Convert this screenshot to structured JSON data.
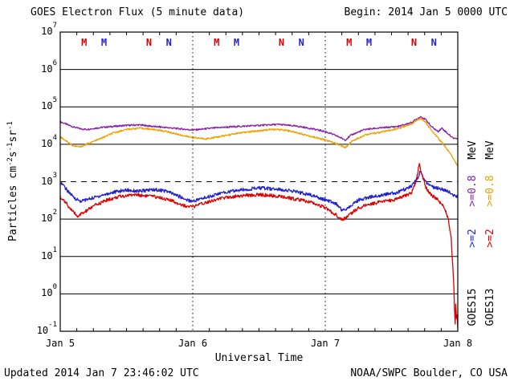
{
  "header": {
    "title": "GOES Electron Flux (5 minute data)",
    "begin": "Begin: 2014 Jan 5 0000 UTC"
  },
  "footer": {
    "updated": "Updated 2014 Jan 7 23:46:02 UTC",
    "credit": "NOAA/SWPC Boulder, CO USA"
  },
  "chart_data": {
    "type": "line",
    "title": "GOES Electron Flux (5 minute data)",
    "xlabel": "Universal Time",
    "ylabel": "Particles cm-2 s-1 sr-1",
    "ylabel_parts": [
      {
        "text": "Particles cm"
      },
      {
        "sup": "-2"
      },
      {
        "text": "s"
      },
      {
        "sup": "-1"
      },
      {
        "text": "sr"
      },
      {
        "sup": "-1"
      }
    ],
    "x_range_days": [
      0,
      3
    ],
    "x_ticks": [
      {
        "t": 0,
        "label": "Jan 5"
      },
      {
        "t": 1,
        "label": "Jan 6"
      },
      {
        "t": 2,
        "label": "Jan 7"
      },
      {
        "t": 3,
        "label": "Jan 8"
      }
    ],
    "y_log_range": [
      -1,
      7
    ],
    "y_tick_exponents": [
      7,
      6,
      5,
      4,
      3,
      2,
      1,
      0,
      -1
    ],
    "grid": "horizontal-solid-per-decade",
    "threshold_line": {
      "value": 1000,
      "style": "dashed"
    },
    "day_gridlines_t": [
      1,
      2
    ],
    "legend_position": "right-rotated",
    "sat_markers": [
      {
        "t": 0.18,
        "label": "M",
        "color": "#dd0000"
      },
      {
        "t": 0.33,
        "label": "M",
        "color": "#2222cc"
      },
      {
        "t": 0.67,
        "label": "N",
        "color": "#dd0000"
      },
      {
        "t": 0.82,
        "label": "N",
        "color": "#2222cc"
      },
      {
        "t": 1.18,
        "label": "M",
        "color": "#dd0000"
      },
      {
        "t": 1.33,
        "label": "M",
        "color": "#2222cc"
      },
      {
        "t": 1.67,
        "label": "N",
        "color": "#dd0000"
      },
      {
        "t": 1.82,
        "label": "N",
        "color": "#2222cc"
      },
      {
        "t": 2.18,
        "label": "M",
        "color": "#dd0000"
      },
      {
        "t": 2.33,
        "label": "M",
        "color": "#2222cc"
      },
      {
        "t": 2.67,
        "label": "N",
        "color": "#dd0000"
      },
      {
        "t": 2.82,
        "label": "N",
        "color": "#2222cc"
      }
    ],
    "legend_columns": [
      {
        "sat": "GOES15",
        "entries": [
          {
            "text": "MeV",
            "color": "#000000"
          },
          {
            "text": ">=0.8",
            "color": "#8822aa"
          },
          {
            "text": ">=2",
            "color": "#2222cc"
          },
          {
            "text": "GOES15",
            "color": "#000000"
          }
        ]
      },
      {
        "sat": "GOES13",
        "entries": [
          {
            "text": "MeV",
            "color": "#000000"
          },
          {
            "text": ">=0.8",
            "color": "#f0a000"
          },
          {
            "text": ">=2",
            "color": "#dd0000"
          },
          {
            "text": "GOES13",
            "color": "#000000"
          }
        ]
      }
    ],
    "series": [
      {
        "id": "goes15-ge0p8",
        "name": "GOES15 >=0.8 MeV",
        "color": "#8822aa",
        "noise": 0.022,
        "points": [
          [
            0,
            40000
          ],
          [
            0.05,
            34000
          ],
          [
            0.1,
            29000
          ],
          [
            0.15,
            26000
          ],
          [
            0.2,
            25000
          ],
          [
            0.3,
            28000
          ],
          [
            0.4,
            30000
          ],
          [
            0.5,
            32000
          ],
          [
            0.6,
            33000
          ],
          [
            0.7,
            30000
          ],
          [
            0.8,
            28000
          ],
          [
            0.9,
            26000
          ],
          [
            1.0,
            24000
          ],
          [
            1.1,
            26000
          ],
          [
            1.2,
            28000
          ],
          [
            1.35,
            30000
          ],
          [
            1.5,
            32000
          ],
          [
            1.65,
            34000
          ],
          [
            1.8,
            30000
          ],
          [
            1.9,
            26000
          ],
          [
            2.0,
            22000
          ],
          [
            2.1,
            16000
          ],
          [
            2.15,
            13000
          ],
          [
            2.2,
            18000
          ],
          [
            2.3,
            25000
          ],
          [
            2.45,
            28000
          ],
          [
            2.55,
            30000
          ],
          [
            2.65,
            38000
          ],
          [
            2.72,
            55000
          ],
          [
            2.76,
            45000
          ],
          [
            2.8,
            30000
          ],
          [
            2.85,
            22000
          ],
          [
            2.88,
            27000
          ],
          [
            2.92,
            20000
          ],
          [
            2.96,
            15000
          ],
          [
            3.0,
            14000
          ]
        ]
      },
      {
        "id": "goes13-ge0p8",
        "name": "GOES13 >=0.8 MeV",
        "color": "#f0a000",
        "noise": 0.022,
        "points": [
          [
            0,
            16000
          ],
          [
            0.05,
            12000
          ],
          [
            0.1,
            9000
          ],
          [
            0.15,
            8500
          ],
          [
            0.2,
            10000
          ],
          [
            0.3,
            14000
          ],
          [
            0.4,
            20000
          ],
          [
            0.5,
            25000
          ],
          [
            0.6,
            27000
          ],
          [
            0.7,
            25000
          ],
          [
            0.8,
            22000
          ],
          [
            0.9,
            18000
          ],
          [
            1.0,
            15000
          ],
          [
            1.1,
            14000
          ],
          [
            1.2,
            16000
          ],
          [
            1.35,
            20000
          ],
          [
            1.5,
            23000
          ],
          [
            1.6,
            25000
          ],
          [
            1.7,
            24000
          ],
          [
            1.8,
            20000
          ],
          [
            1.9,
            16000
          ],
          [
            2.0,
            13000
          ],
          [
            2.1,
            10000
          ],
          [
            2.15,
            8000
          ],
          [
            2.2,
            12000
          ],
          [
            2.3,
            18000
          ],
          [
            2.45,
            22000
          ],
          [
            2.55,
            26000
          ],
          [
            2.65,
            35000
          ],
          [
            2.72,
            50000
          ],
          [
            2.76,
            38000
          ],
          [
            2.8,
            24000
          ],
          [
            2.85,
            15000
          ],
          [
            2.9,
            9000
          ],
          [
            2.94,
            6000
          ],
          [
            2.97,
            4000
          ],
          [
            3.0,
            2600
          ]
        ]
      },
      {
        "id": "goes15-ge2",
        "name": "GOES15 >=2 MeV",
        "color": "#2222cc",
        "noise": 0.045,
        "points": [
          [
            0,
            1000
          ],
          [
            0.05,
            600
          ],
          [
            0.1,
            380
          ],
          [
            0.15,
            300
          ],
          [
            0.2,
            330
          ],
          [
            0.3,
            420
          ],
          [
            0.4,
            520
          ],
          [
            0.5,
            600
          ],
          [
            0.6,
            550
          ],
          [
            0.7,
            620
          ],
          [
            0.8,
            560
          ],
          [
            0.9,
            400
          ],
          [
            0.95,
            330
          ],
          [
            1.0,
            300
          ],
          [
            1.1,
            380
          ],
          [
            1.2,
            480
          ],
          [
            1.3,
            560
          ],
          [
            1.4,
            620
          ],
          [
            1.5,
            680
          ],
          [
            1.6,
            640
          ],
          [
            1.7,
            600
          ],
          [
            1.8,
            520
          ],
          [
            1.9,
            430
          ],
          [
            2.0,
            330
          ],
          [
            2.08,
            260
          ],
          [
            2.13,
            170
          ],
          [
            2.17,
            200
          ],
          [
            2.25,
            320
          ],
          [
            2.35,
            400
          ],
          [
            2.45,
            450
          ],
          [
            2.55,
            520
          ],
          [
            2.65,
            750
          ],
          [
            2.7,
            1300
          ],
          [
            2.72,
            2000
          ],
          [
            2.74,
            1200
          ],
          [
            2.78,
            800
          ],
          [
            2.82,
            700
          ],
          [
            2.86,
            650
          ],
          [
            2.9,
            600
          ],
          [
            2.94,
            520
          ],
          [
            2.97,
            430
          ],
          [
            3.0,
            380
          ]
        ]
      },
      {
        "id": "goes13-ge2",
        "name": "GOES13 >=2 MeV",
        "color": "#dd0000",
        "noise": 0.045,
        "points": [
          [
            0,
            400
          ],
          [
            0.05,
            250
          ],
          [
            0.1,
            150
          ],
          [
            0.13,
            120
          ],
          [
            0.18,
            150
          ],
          [
            0.25,
            220
          ],
          [
            0.35,
            320
          ],
          [
            0.45,
            400
          ],
          [
            0.55,
            450
          ],
          [
            0.65,
            420
          ],
          [
            0.75,
            380
          ],
          [
            0.85,
            300
          ],
          [
            0.95,
            220
          ],
          [
            1.0,
            210
          ],
          [
            1.1,
            280
          ],
          [
            1.2,
            350
          ],
          [
            1.3,
            400
          ],
          [
            1.4,
            430
          ],
          [
            1.5,
            450
          ],
          [
            1.6,
            420
          ],
          [
            1.7,
            380
          ],
          [
            1.8,
            330
          ],
          [
            1.9,
            280
          ],
          [
            2.0,
            200
          ],
          [
            2.08,
            130
          ],
          [
            2.13,
            95
          ],
          [
            2.17,
            120
          ],
          [
            2.25,
            200
          ],
          [
            2.35,
            260
          ],
          [
            2.45,
            300
          ],
          [
            2.55,
            350
          ],
          [
            2.65,
            500
          ],
          [
            2.69,
            1200
          ],
          [
            2.71,
            3000
          ],
          [
            2.73,
            1500
          ],
          [
            2.76,
            700
          ],
          [
            2.8,
            450
          ],
          [
            2.84,
            350
          ],
          [
            2.88,
            250
          ],
          [
            2.91,
            160
          ],
          [
            2.93,
            90
          ],
          [
            2.95,
            30
          ],
          [
            2.96,
            8
          ],
          [
            2.97,
            1.5
          ],
          [
            2.975,
            0.4
          ],
          [
            2.98,
            0.15
          ],
          [
            2.985,
            0.5
          ],
          [
            2.99,
            0.2
          ],
          [
            2.995,
            0.3
          ],
          [
            3.0,
            0.12
          ]
        ]
      }
    ]
  }
}
